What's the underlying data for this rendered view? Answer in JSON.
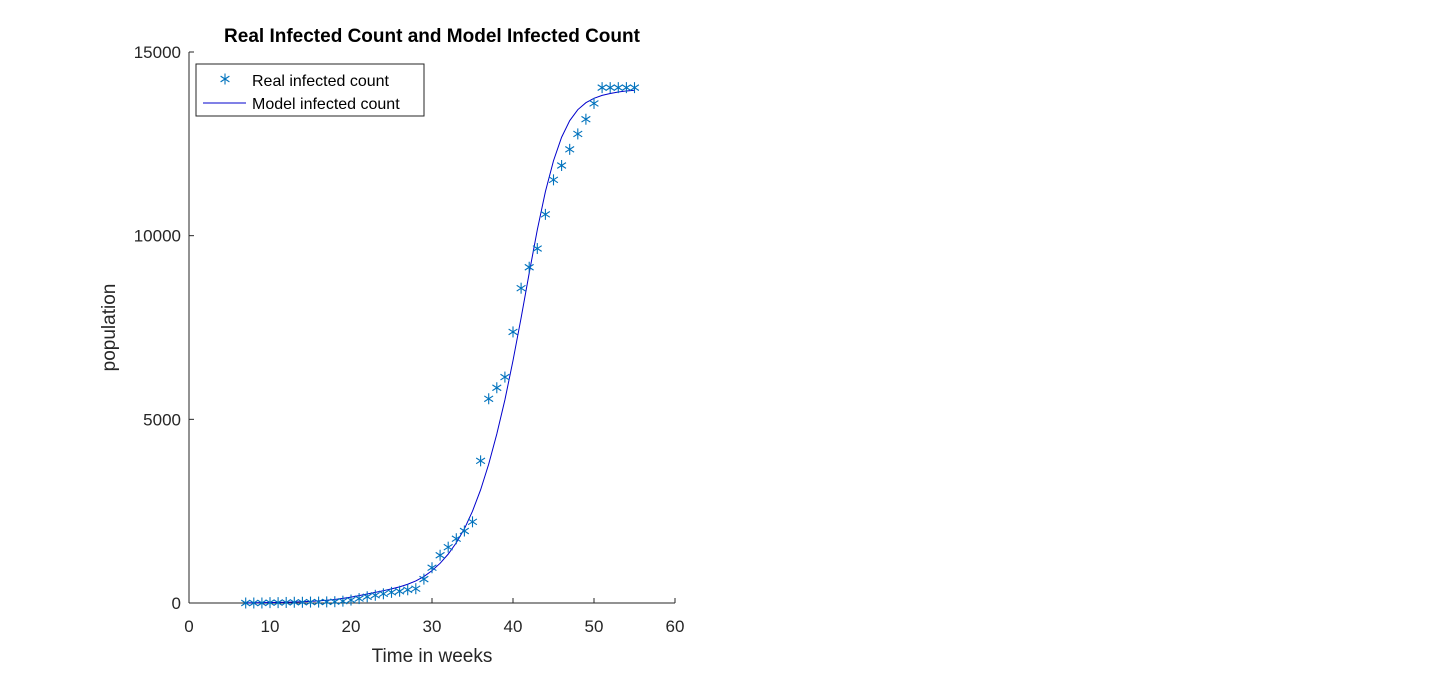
{
  "chart_data": {
    "type": "line",
    "title": "Real Infected Count and Model Infected Count",
    "xlabel": "Time in weeks",
    "ylabel": "population",
    "xlim": [
      0,
      60
    ],
    "ylim": [
      0,
      15000
    ],
    "xticks": [
      0,
      10,
      20,
      30,
      40,
      50,
      60
    ],
    "yticks": [
      0,
      5000,
      10000,
      15000
    ],
    "grid": false,
    "legend_position": "top-left",
    "series": [
      {
        "name": "Real infected count",
        "marker": "asterisk",
        "color": "#0072BD",
        "x": [
          7,
          8,
          9,
          10,
          11,
          12,
          13,
          14,
          15,
          16,
          17,
          18,
          19,
          20,
          21,
          22,
          23,
          24,
          25,
          26,
          27,
          28,
          29,
          30,
          31,
          32,
          33,
          34,
          35,
          36,
          37,
          38,
          39,
          40,
          41,
          42,
          43,
          44,
          45,
          46,
          47,
          48,
          49,
          50,
          51,
          52,
          53,
          54,
          55
        ],
        "y": [
          0,
          0,
          0,
          10,
          10,
          15,
          20,
          20,
          25,
          25,
          30,
          35,
          50,
          80,
          120,
          170,
          210,
          250,
          290,
          320,
          360,
          390,
          650,
          960,
          1300,
          1520,
          1750,
          1960,
          2210,
          3870,
          5560,
          5860,
          6150,
          7380,
          8570,
          9140,
          9650,
          10580,
          11520,
          11910,
          12350,
          12770,
          13170,
          13600,
          14030,
          14030,
          14030,
          14030,
          14030
        ]
      },
      {
        "name": "Model infected count",
        "line": "solid",
        "color": "#0000CC",
        "x": [
          7,
          8,
          9,
          10,
          11,
          12,
          13,
          14,
          15,
          16,
          17,
          18,
          19,
          20,
          21,
          22,
          23,
          24,
          25,
          26,
          27,
          28,
          29,
          30,
          31,
          32,
          33,
          34,
          35,
          36,
          37,
          38,
          39,
          40,
          41,
          42,
          43,
          44,
          45,
          46,
          47,
          48,
          49,
          50,
          51,
          52,
          53,
          54,
          55
        ],
        "y": [
          5,
          7,
          10,
          13,
          17,
          22,
          28,
          35,
          45,
          58,
          75,
          97,
          125,
          160,
          200,
          245,
          290,
          335,
          385,
          440,
          510,
          600,
          720,
          880,
          1080,
          1330,
          1640,
          2020,
          2500,
          3080,
          3780,
          4600,
          5530,
          6600,
          7760,
          8980,
          10160,
          11200,
          12040,
          12680,
          13130,
          13430,
          13620,
          13740,
          13820,
          13870,
          13910,
          13940,
          13960
        ]
      }
    ]
  }
}
